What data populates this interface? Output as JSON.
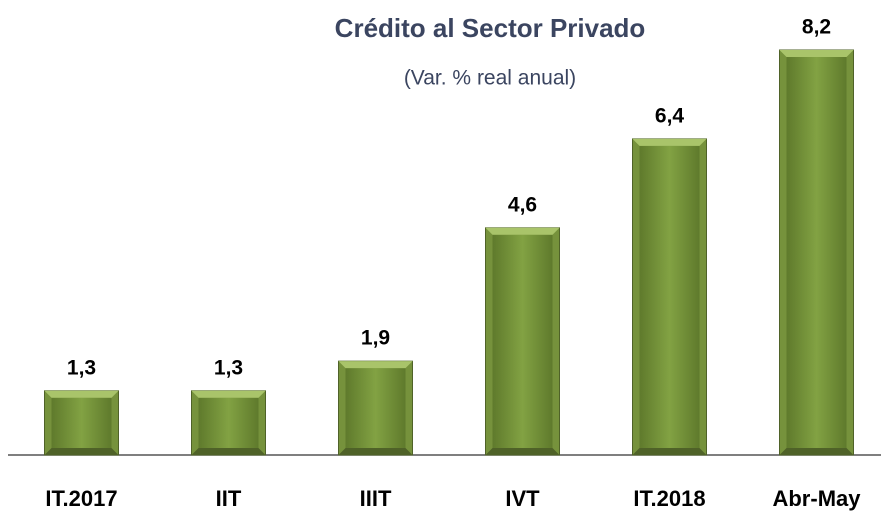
{
  "chart_data": {
    "type": "bar",
    "title": "Crédito al Sector Privado",
    "subtitle": "(Var. % real  anual)",
    "categories": [
      "IT.2017",
      "IIT",
      "IIIT",
      "IVT",
      "IT.2018",
      "Abr-May"
    ],
    "values": [
      1.3,
      1.3,
      1.9,
      4.6,
      6.4,
      8.2
    ],
    "value_labels": [
      "1,3",
      "1,3",
      "1,9",
      "4,6",
      "6,4",
      "8,2"
    ],
    "color": "#76923c"
  }
}
